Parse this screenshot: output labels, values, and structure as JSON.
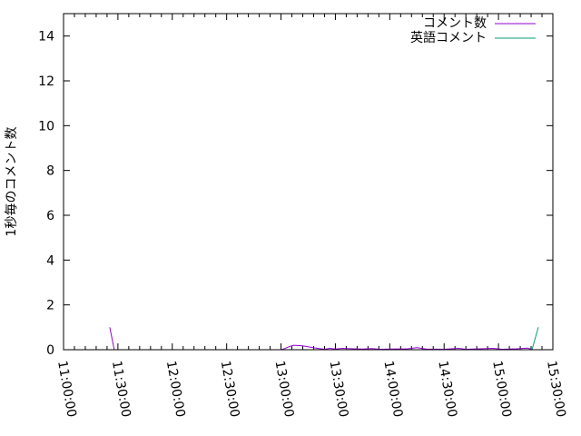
{
  "chart_data": {
    "type": "line",
    "title": "",
    "xlabel": "",
    "ylabel": "1秒毎のコメント数",
    "ylim": [
      0,
      15
    ],
    "xlim": [
      "11:00:00",
      "15:30:00"
    ],
    "yticks": [
      "0",
      "2",
      "4",
      "6",
      "8",
      "10",
      "12",
      "14"
    ],
    "xticks": [
      "11:00:00",
      "11:30:00",
      "12:00:00",
      "12:30:00",
      "13:00:00",
      "13:30:00",
      "14:00:00",
      "14:30:00",
      "15:00:00",
      "15:30:00"
    ],
    "grid": false,
    "legend": "top-right",
    "series": [
      {
        "name": "コメント数",
        "color": "#9400d3",
        "points": [
          [
            "11:25:30",
            1
          ],
          [
            "11:28:00",
            0
          ],
          [
            "13:00:00",
            0
          ],
          [
            "13:02:00",
            0.05
          ],
          [
            "13:05:00",
            0.15
          ],
          [
            "13:07:00",
            0.2
          ],
          [
            "13:12:00",
            0.17
          ],
          [
            "13:17:00",
            0.1
          ],
          [
            "13:21:00",
            0.05
          ],
          [
            "13:24:00",
            0.02
          ],
          [
            "13:27:00",
            0.06
          ],
          [
            "13:30:00",
            0.03
          ],
          [
            "13:34:00",
            0.06
          ],
          [
            "13:40:00",
            0.04
          ],
          [
            "13:45:00",
            0.03
          ],
          [
            "13:50:00",
            0.05
          ],
          [
            "13:55:00",
            0.02
          ],
          [
            "14:00:00",
            0.03
          ],
          [
            "14:10:00",
            0.04
          ],
          [
            "14:15:00",
            0.09
          ],
          [
            "14:20:00",
            0.03
          ],
          [
            "14:30:00",
            0.02
          ],
          [
            "14:38:00",
            0.06
          ],
          [
            "14:42:00",
            0.02
          ],
          [
            "14:50:00",
            0.04
          ],
          [
            "14:57:00",
            0.06
          ],
          [
            "15:02:00",
            0.02
          ],
          [
            "15:10:00",
            0.04
          ],
          [
            "15:16:00",
            0.07
          ],
          [
            "15:19:00",
            0
          ]
        ]
      },
      {
        "name": "英語コメント",
        "color": "#009e73",
        "points": [
          [
            "13:00:00",
            0
          ],
          [
            "13:08:00",
            0
          ],
          [
            "15:18:30",
            0
          ],
          [
            "15:22:00",
            1
          ]
        ]
      }
    ]
  }
}
